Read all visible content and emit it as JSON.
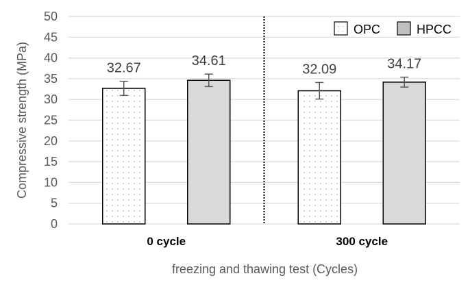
{
  "chart_data": {
    "type": "bar",
    "title": "",
    "xlabel": "freezing and thawing test (Cycles)",
    "ylabel": "Compressive strength (MPa)",
    "ylim": [
      0,
      50
    ],
    "yticks": [
      0,
      5,
      10,
      15,
      20,
      25,
      30,
      35,
      40,
      45,
      50
    ],
    "grid": true,
    "categories": [
      "0 cycle",
      "300 cycle"
    ],
    "series": [
      {
        "name": "OPC",
        "values": [
          32.67,
          32.09
        ],
        "errors": [
          1.7,
          2.0
        ],
        "fill": "#ffffff",
        "pattern": "dotted"
      },
      {
        "name": "HPCC",
        "values": [
          34.61,
          34.17
        ],
        "errors": [
          1.5,
          1.2
        ],
        "fill": "#d9d9d9",
        "pattern": "solid"
      }
    ],
    "data_labels": [
      "32.67",
      "34.61",
      "32.09",
      "34.17"
    ],
    "legend": {
      "placement": "top-right",
      "entries": [
        "OPC",
        "HPCC"
      ]
    },
    "divider": "dotted vertical line between categories",
    "colors": {
      "grid": "#d9d9d9",
      "bar_border": "#000000",
      "error_bar": "#595959",
      "text": "#595959"
    }
  }
}
